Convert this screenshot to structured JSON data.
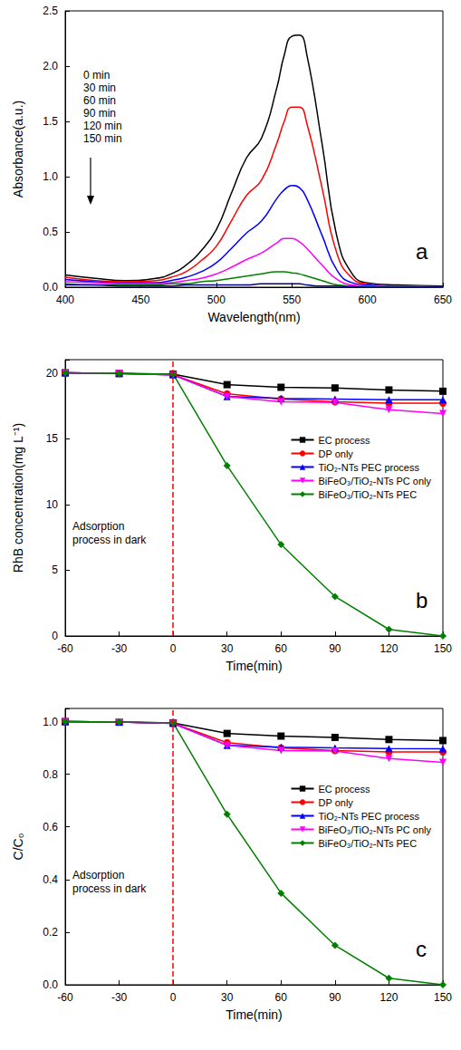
{
  "chart_data": [
    {
      "type": "line",
      "panel_label": "a",
      "x_label": "Wavelength(nm)",
      "y_label": "Absorbance(a.u.)",
      "x": [
        400,
        420,
        440,
        460,
        470,
        480,
        490,
        500,
        510,
        520,
        530,
        540,
        545,
        550,
        555,
        560,
        570,
        580,
        590,
        600,
        620,
        650
      ],
      "series": [
        {
          "name": "0 min",
          "color": "#000000",
          "values": [
            0.11,
            0.08,
            0.06,
            0.08,
            0.12,
            0.2,
            0.33,
            0.52,
            0.85,
            1.17,
            1.35,
            1.8,
            2.1,
            2.27,
            2.28,
            2.1,
            1.3,
            0.45,
            0.12,
            0.04,
            0.02,
            0.01
          ]
        },
        {
          "name": "30 min",
          "color": "#ff0000",
          "values": [
            0.09,
            0.06,
            0.05,
            0.06,
            0.09,
            0.14,
            0.24,
            0.37,
            0.6,
            0.83,
            0.97,
            1.3,
            1.5,
            1.63,
            1.63,
            1.48,
            0.9,
            0.3,
            0.08,
            0.03,
            0.01,
            0.01
          ]
        },
        {
          "name": "60 min",
          "color": "#0000ff",
          "values": [
            0.07,
            0.05,
            0.04,
            0.04,
            0.06,
            0.09,
            0.14,
            0.22,
            0.35,
            0.49,
            0.6,
            0.8,
            0.88,
            0.92,
            0.9,
            0.8,
            0.47,
            0.15,
            0.04,
            0.02,
            0.01,
            0.01
          ]
        },
        {
          "name": "90 min",
          "color": "#ff00ff",
          "values": [
            0.05,
            0.04,
            0.03,
            0.03,
            0.04,
            0.06,
            0.08,
            0.12,
            0.18,
            0.25,
            0.31,
            0.4,
            0.44,
            0.44,
            0.41,
            0.35,
            0.2,
            0.07,
            0.02,
            0.01,
            0.01,
            0.0
          ]
        },
        {
          "name": "120 min",
          "color": "#008000",
          "values": [
            0.03,
            0.02,
            0.02,
            0.02,
            0.03,
            0.03,
            0.05,
            0.06,
            0.08,
            0.1,
            0.12,
            0.14,
            0.14,
            0.13,
            0.12,
            0.1,
            0.06,
            0.02,
            0.01,
            0.0,
            0.0,
            0.0
          ]
        },
        {
          "name": "150 min",
          "color": "#000080",
          "values": [
            0.02,
            0.02,
            0.01,
            0.01,
            0.01,
            0.02,
            0.02,
            0.02,
            0.02,
            0.02,
            0.03,
            0.03,
            0.03,
            0.03,
            0.03,
            0.02,
            0.01,
            0.01,
            0.0,
            0.0,
            0.0,
            0.0
          ]
        }
      ],
      "xlim": [
        400,
        650
      ],
      "xticks": [
        400,
        450,
        500,
        550,
        600,
        650
      ],
      "ylim": [
        0,
        2.5
      ],
      "yticks": [
        {
          "value": 0,
          "label": "0.0"
        },
        0.5,
        {
          "value": 1,
          "label": "1.0"
        },
        1.5,
        {
          "value": 2,
          "label": "2.0"
        },
        2.5
      ],
      "legend": "upper left",
      "grid": false
    },
    {
      "type": "line",
      "panel_label": "b",
      "x_label": "Time(min)",
      "y_label": "RhB concentration(mg L⁻¹)",
      "annotations": [
        "Adsorption process in dark"
      ],
      "reference_x": 0,
      "x": [
        -60,
        -30,
        0,
        30,
        60,
        90,
        120,
        150
      ],
      "series": [
        {
          "name": "EC process",
          "color": "#000000",
          "marker": "square",
          "values": [
            20,
            19.95,
            19.9,
            19.1,
            18.9,
            18.85,
            18.7,
            18.6
          ]
        },
        {
          "name": "DP only",
          "color": "#ff0000",
          "marker": "circle",
          "values": [
            20,
            19.95,
            19.85,
            18.4,
            18.0,
            17.8,
            17.7,
            17.7
          ]
        },
        {
          "name": "TiO₂-NTs PEC process",
          "color": "#0000ff",
          "marker": "triangle",
          "values": [
            20,
            19.95,
            19.85,
            18.2,
            18.05,
            18.0,
            17.95,
            17.95
          ]
        },
        {
          "name": "BiFeO₃/TiO₂-NTs PC only",
          "color": "#ff00ff",
          "marker": "triangle_down",
          "values": [
            20,
            19.95,
            19.85,
            18.2,
            17.8,
            17.75,
            17.2,
            16.9
          ]
        },
        {
          "name": "BiFeO₃/TiO₂-NTs PEC",
          "color": "#008000",
          "marker": "diamond",
          "values": [
            20,
            19.95,
            19.9,
            12.95,
            6.95,
            3.0,
            0.5,
            0.0
          ]
        }
      ],
      "xlim": [
        -60,
        150
      ],
      "xticks": [
        -60,
        -30,
        0,
        30,
        60,
        90,
        120,
        150
      ],
      "ylim": [
        0,
        21
      ],
      "yticks": [
        0,
        5,
        10,
        15,
        20
      ],
      "legend": "right",
      "grid": false
    },
    {
      "type": "line",
      "panel_label": "c",
      "x_label": "Time(min)",
      "y_label": "C/C₀",
      "annotations": [
        "Adsorption process in dark"
      ],
      "reference_x": 0,
      "x": [
        -60,
        -30,
        0,
        30,
        60,
        90,
        120,
        150
      ],
      "series": [
        {
          "name": "EC process",
          "color": "#000000",
          "marker": "square",
          "values": [
            1,
            0.998,
            0.995,
            0.955,
            0.945,
            0.94,
            0.932,
            0.928
          ]
        },
        {
          "name": "DP only",
          "color": "#ff0000",
          "marker": "circle",
          "values": [
            1,
            0.998,
            0.993,
            0.92,
            0.9,
            0.89,
            0.885,
            0.885
          ]
        },
        {
          "name": "TiO₂-NTs PEC process",
          "color": "#0000ff",
          "marker": "triangle",
          "values": [
            1,
            0.998,
            0.993,
            0.91,
            0.903,
            0.9,
            0.898,
            0.897
          ]
        },
        {
          "name": "BiFeO₃/TiO₂-NTs PC only",
          "color": "#ff00ff",
          "marker": "triangle_down",
          "values": [
            1,
            0.998,
            0.993,
            0.91,
            0.89,
            0.888,
            0.86,
            0.845
          ]
        },
        {
          "name": "BiFeO₃/TiO₂-NTs PEC",
          "color": "#008000",
          "marker": "diamond",
          "values": [
            1,
            0.998,
            0.995,
            0.648,
            0.348,
            0.15,
            0.025,
            0.0
          ]
        }
      ],
      "xlim": [
        -60,
        150
      ],
      "xticks": [
        -60,
        -30,
        0,
        30,
        60,
        90,
        120,
        150
      ],
      "ylim": [
        0,
        1.05
      ],
      "yticks": [
        {
          "value": 0,
          "label": "0.0"
        },
        0.2,
        0.4,
        0.6,
        0.8,
        {
          "value": 1,
          "label": "1.0"
        }
      ],
      "legend": "right",
      "grid": false
    }
  ]
}
